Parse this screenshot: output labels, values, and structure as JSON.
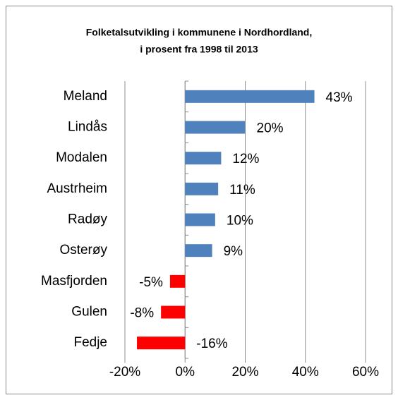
{
  "chart_data": {
    "type": "hbar",
    "title": [
      "Folketalsutvikling i kommunene i Nordhordland,",
      "i prosent fra 1998 til 2013"
    ],
    "categories": [
      "Meland",
      "Lindås",
      "Modalen",
      "Austrheim",
      "Radøy",
      "Osterøy",
      "Masfjorden",
      "Gulen",
      "Fedje"
    ],
    "values": [
      43,
      20,
      12,
      11,
      10,
      9,
      -5,
      -8,
      -16
    ],
    "value_labels": [
      "43%",
      "20%",
      "12%",
      "11%",
      "10%",
      "9%",
      "-5%",
      "-8%",
      "-16%"
    ],
    "colors": [
      "#4f81bd",
      "#4f81bd",
      "#4f81bd",
      "#4f81bd",
      "#4f81bd",
      "#4f81bd",
      "#ff0000",
      "#ff0000",
      "#ff0000"
    ],
    "xlim": [
      -20,
      60
    ],
    "xticks": [
      {
        "value": -20,
        "label": "-20%"
      },
      {
        "value": 0,
        "label": "0%"
      },
      {
        "value": 20,
        "label": "20%"
      },
      {
        "value": 40,
        "label": "40%"
      },
      {
        "value": 60,
        "label": "60%"
      }
    ],
    "grid": true
  }
}
